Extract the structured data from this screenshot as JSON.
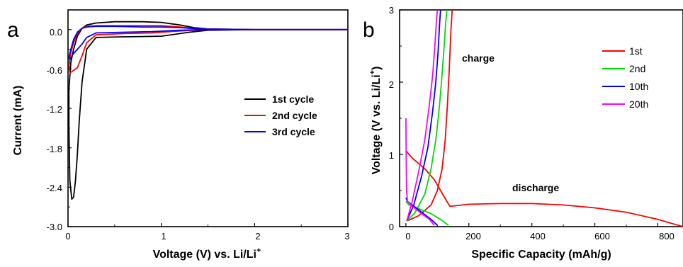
{
  "chart_data": [
    {
      "type": "line",
      "panel_label": "a",
      "xlabel": "Voltage (V) vs. Li/Li",
      "xlabel_sup": "+",
      "ylabel": "Current (mA)",
      "xlim": [
        0,
        3
      ],
      "ylim": [
        -3.0,
        0.3
      ],
      "xticks": [
        "0",
        "1",
        "2",
        "3"
      ],
      "yticks": [
        "0.0",
        "-0.6",
        "-1.2",
        "-1.8",
        "-2.4",
        "-3.0"
      ],
      "grid": false,
      "legend_position": "center-right",
      "series": [
        {
          "name": "1st  cycle",
          "color": "#000000",
          "x": [
            3.0,
            2.0,
            1.5,
            1.3,
            1.0,
            0.6,
            0.3,
            0.2,
            0.15,
            0.12,
            0.1,
            0.08,
            0.06,
            0.04,
            0.02,
            0.01,
            0.01,
            0.03,
            0.06,
            0.1,
            0.15,
            0.2,
            0.3,
            0.5,
            0.8,
            1.0,
            1.2,
            1.35,
            1.5,
            2.0,
            3.0
          ],
          "y": [
            0.0,
            0.0,
            -0.01,
            -0.04,
            -0.1,
            -0.11,
            -0.12,
            -0.3,
            -0.8,
            -1.4,
            -1.9,
            -2.3,
            -2.55,
            -2.58,
            -2.3,
            -1.5,
            -0.9,
            -0.5,
            -0.3,
            -0.1,
            0.02,
            0.07,
            0.1,
            0.12,
            0.12,
            0.11,
            0.07,
            0.03,
            0.01,
            0.0,
            0.0
          ]
        },
        {
          "name": "2nd cycle",
          "color": "#ff0000",
          "x": [
            3.0,
            2.0,
            1.5,
            1.2,
            0.9,
            0.6,
            0.3,
            0.2,
            0.15,
            0.1,
            0.05,
            0.02,
            0.01,
            0.03,
            0.06,
            0.1,
            0.15,
            0.2,
            0.3,
            0.5,
            0.8,
            1.0,
            1.2,
            1.4,
            2.0,
            3.0
          ],
          "y": [
            0.0,
            0.0,
            0.0,
            -0.02,
            -0.05,
            -0.06,
            -0.08,
            -0.2,
            -0.4,
            -0.58,
            -0.63,
            -0.66,
            -0.55,
            -0.35,
            -0.2,
            -0.06,
            0.02,
            0.05,
            0.06,
            0.06,
            0.06,
            0.06,
            0.04,
            0.01,
            0.0,
            0.0
          ]
        },
        {
          "name": "3rd  cycle",
          "color": "#0000ff",
          "x": [
            3.0,
            2.0,
            1.5,
            1.2,
            0.9,
            0.6,
            0.3,
            0.2,
            0.15,
            0.1,
            0.05,
            0.02,
            0.01,
            0.03,
            0.06,
            0.1,
            0.15,
            0.2,
            0.3,
            0.5,
            0.8,
            1.0,
            1.2,
            1.4,
            2.0,
            3.0
          ],
          "y": [
            0.0,
            0.0,
            0.0,
            -0.01,
            -0.03,
            -0.04,
            -0.05,
            -0.12,
            -0.22,
            -0.3,
            -0.38,
            -0.46,
            -0.42,
            -0.3,
            -0.15,
            -0.04,
            0.02,
            0.04,
            0.05,
            0.05,
            0.04,
            0.04,
            0.03,
            0.01,
            0.0,
            0.0
          ]
        }
      ]
    },
    {
      "type": "line",
      "panel_label": "b",
      "xlabel": "Specific Capacity (mAh/g)",
      "ylabel": "Voltage (V vs. Li/Li",
      "ylabel_sup": "+",
      "ylabel_end": ")",
      "xlim": [
        -20,
        880
      ],
      "ylim": [
        0,
        3
      ],
      "xticks": [
        "0",
        "200",
        "400",
        "600",
        "800"
      ],
      "yticks": [
        "0",
        "1",
        "2",
        "3"
      ],
      "grid": false,
      "legend_position": "top-right",
      "annotations": [
        "charge",
        "discharge"
      ],
      "series": [
        {
          "name": "1st",
          "color": "#ff0000",
          "segments": [
            {
              "x": [
                0,
                20,
                60,
                90,
                110,
                130,
                140,
                200,
                300,
                400,
                500,
                600,
                700,
                800,
                880
              ],
              "y": [
                1.05,
                0.95,
                0.8,
                0.65,
                0.5,
                0.35,
                0.28,
                0.31,
                0.32,
                0.32,
                0.3,
                0.26,
                0.2,
                0.1,
                0.0
              ]
            },
            {
              "x": [
                5,
                40,
                80,
                100,
                115,
                125,
                132,
                138,
                143,
                147
              ],
              "y": [
                0.08,
                0.15,
                0.3,
                0.5,
                0.8,
                1.2,
                1.7,
                2.2,
                2.7,
                3.0
              ]
            }
          ]
        },
        {
          "name": "2nd",
          "color": "#00dd00",
          "segments": [
            {
              "x": [
                0,
                10,
                40,
                80,
                110,
                135
              ],
              "y": [
                0.35,
                0.3,
                0.25,
                0.18,
                0.1,
                0.02
              ]
            },
            {
              "x": [
                5,
                30,
                60,
                80,
                95,
                105,
                113,
                120,
                126,
                130
              ],
              "y": [
                0.08,
                0.2,
                0.45,
                0.8,
                1.2,
                1.6,
                2.0,
                2.4,
                2.8,
                3.0
              ]
            }
          ]
        },
        {
          "name": "10th",
          "color": "#0000ff",
          "segments": [
            {
              "x": [
                0,
                5,
                20,
                50,
                80,
                100
              ],
              "y": [
                0.4,
                0.35,
                0.3,
                0.2,
                0.1,
                0.02
              ]
            },
            {
              "x": [
                3,
                25,
                50,
                70,
                85,
                95,
                102,
                107,
                110
              ],
              "y": [
                0.08,
                0.3,
                0.7,
                1.1,
                1.6,
                2.0,
                2.4,
                2.8,
                3.0
              ]
            }
          ]
        },
        {
          "name": "20th",
          "color": "#ff00ff",
          "segments": [
            {
              "x": [
                0,
                1,
                2,
                5,
                20,
                50,
                75,
                90
              ],
              "y": [
                1.5,
                1.0,
                0.5,
                0.35,
                0.28,
                0.18,
                0.1,
                0.02
              ]
            },
            {
              "x": [
                3,
                20,
                40,
                60,
                75,
                85,
                92,
                97,
                100
              ],
              "y": [
                0.08,
                0.35,
                0.75,
                1.2,
                1.7,
                2.1,
                2.5,
                2.85,
                3.0
              ]
            }
          ]
        }
      ]
    }
  ]
}
